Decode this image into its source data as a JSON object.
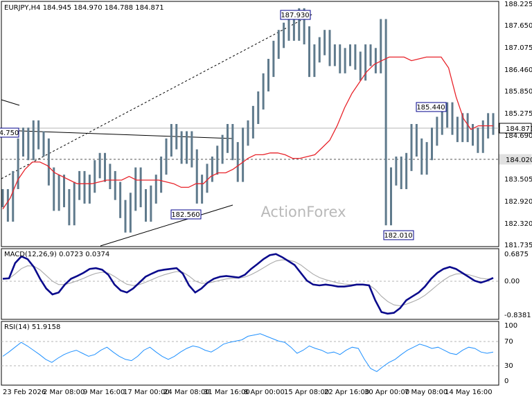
{
  "header": {
    "symbol_line": "EURJPY,H4  184.945 184.970 184.788 184.871",
    "macd_label": "MACD(12,26,9) 0.0723 0.0374",
    "rsi_label": "RSI(14) 51.9158",
    "watermark": "ActionForex"
  },
  "colors": {
    "bars": "#5f7a8c",
    "ma": "#e8232a",
    "macd": "#0a0a8c",
    "signal": "#aaaaaa",
    "rsi": "#1e90ff",
    "trend": "#000000",
    "label_border": "#00008b"
  },
  "chart_data": [
    {
      "type": "line",
      "title": "EURJPY,H4",
      "subtitle": "184.945 184.970 184.788 184.871",
      "ylim": [
        181.6,
        188.3
      ],
      "yticks": [
        "188.225",
        "187.650",
        "187.075",
        "186.460",
        "185.850",
        "185.275",
        "184.690",
        "184.105",
        "183.505",
        "182.920",
        "182.320",
        "181.735"
      ],
      "price_tags": [
        {
          "label": "184.871",
          "value": 184.871
        },
        {
          "label": "184.020",
          "value": 184.02
        }
      ],
      "hlines": [
        {
          "name": "current",
          "value": 184.871,
          "style": "solid"
        },
        {
          "name": "support",
          "value": 184.02,
          "style": "dashed"
        }
      ],
      "annotations": [
        {
          "text": "187.930",
          "x": "15 Apr 08:00",
          "y": 187.93
        },
        {
          "text": "185.440",
          "x": "7 May 08:00",
          "y": 185.44
        },
        {
          "text": "182.560",
          "x": "24 Mar 08:00",
          "y": 182.56
        },
        {
          "text": "182.010",
          "x": "1 May",
          "y": 182.01
        },
        {
          "text": "4.750",
          "x": "23 Feb 2026",
          "y": 184.75
        }
      ],
      "series": [
        {
          "values": [
            182.9,
            182.5,
            183.4,
            184.3,
            184.6,
            184.2,
            184.8,
            184.5,
            184.3,
            183.5,
            182.8,
            183.3,
            182.9,
            182.4,
            183.1,
            183.4,
            183.0,
            183.3,
            183.7,
            183.9,
            183.6,
            183.4,
            183.1,
            182.6,
            182.2,
            182.8,
            183.5,
            182.9,
            182.5,
            183.0,
            183.3,
            183.8,
            184.3,
            184.7,
            184.5,
            184.1,
            184.5,
            184.0,
            183.0,
            183.3,
            183.6,
            183.8,
            184.1,
            184.4,
            184.7,
            184.2,
            183.6,
            184.6,
            184.8,
            185.2,
            185.6,
            186.1,
            186.5,
            187.0,
            187.3,
            187.5,
            187.6,
            187.5,
            187.9,
            187.4,
            186.5,
            186.9,
            187.1,
            187.3,
            186.8,
            186.9,
            186.6,
            186.8,
            186.9,
            186.7,
            186.4,
            186.9,
            186.8,
            186.6,
            187.6,
            182.4,
            183.5,
            183.8,
            183.4,
            183.9,
            184.7,
            184.3,
            183.8,
            184.2,
            184.6,
            184.9,
            185.1,
            185.3,
            184.9,
            184.7,
            185.0,
            184.7,
            184.6,
            184.4,
            184.8,
            185.0,
            184.9
          ]
        },
        {
          "values": [
            182.6,
            182.9,
            183.4,
            183.7,
            183.9,
            183.9,
            183.8,
            183.6,
            183.5,
            183.4,
            183.3,
            183.3,
            183.3,
            183.35,
            183.4,
            183.4,
            183.4,
            183.5,
            183.4,
            183.4,
            183.4,
            183.4,
            183.35,
            183.3,
            183.2,
            183.2,
            183.3,
            183.3,
            183.5,
            183.6,
            183.6,
            183.7,
            183.85,
            184.0,
            184.1,
            184.1,
            184.15,
            184.15,
            184.1,
            184.0,
            184.0,
            184.05,
            184.1,
            184.3,
            184.5,
            184.9,
            185.4,
            185.8,
            186.1,
            186.4,
            186.6,
            186.7,
            186.8,
            186.8,
            186.8,
            186.7,
            186.75,
            186.8,
            186.8,
            186.8,
            186.5,
            185.7,
            185.1,
            184.8,
            184.9,
            184.9,
            184.9
          ]
        },
        {
          "name": "MACD(12,26,9)",
          "values": [
            0.05,
            0.06,
            0.45,
            0.62,
            0.55,
            0.35,
            0.05,
            -0.2,
            -0.35,
            -0.3,
            -0.1,
            0.05,
            0.12,
            0.2,
            0.3,
            0.32,
            0.28,
            0.15,
            -0.1,
            -0.25,
            -0.3,
            -0.2,
            -0.05,
            0.1,
            0.18,
            0.25,
            0.28,
            0.3,
            0.32,
            0.18,
            -0.12,
            -0.3,
            -0.2,
            -0.05,
            0.05,
            0.1,
            0.12,
            0.1,
            0.08,
            0.15,
            0.3,
            0.42,
            0.55,
            0.65,
            0.68,
            0.6,
            0.5,
            0.4,
            0.2,
            0.0,
            -0.1,
            -0.12,
            -0.1,
            -0.12,
            -0.15,
            -0.15,
            -0.13,
            -0.1,
            -0.1,
            -0.12,
            -0.5,
            -0.8,
            -0.84,
            -0.82,
            -0.7,
            -0.5,
            -0.4,
            -0.3,
            -0.15,
            0.05,
            0.2,
            0.3,
            0.35,
            0.3,
            0.2,
            0.1,
            0.0,
            -0.05,
            0.0,
            0.07
          ]
        },
        {
          "name": "RSI(14)",
          "values": [
            45,
            52,
            60,
            68,
            62,
            55,
            48,
            40,
            35,
            42,
            48,
            52,
            55,
            50,
            45,
            48,
            55,
            60,
            52,
            45,
            40,
            38,
            45,
            55,
            60,
            52,
            45,
            40,
            45,
            52,
            58,
            62,
            60,
            55,
            52,
            58,
            65,
            68,
            70,
            72,
            78,
            80,
            82,
            78,
            74,
            70,
            68,
            60,
            50,
            55,
            62,
            58,
            55,
            50,
            52,
            48,
            55,
            60,
            58,
            40,
            25,
            20,
            28,
            35,
            40,
            48,
            55,
            60,
            65,
            62,
            58,
            60,
            55,
            50,
            48,
            55,
            60,
            58,
            52,
            50,
            52
          ]
        }
      ]
    },
    {
      "type": "line",
      "title": "MACD(12,26,9)",
      "subtitle": "0.0723 0.0374",
      "ylim": [
        -0.95,
        0.78
      ],
      "yticks": [
        "0.6875",
        "0.00",
        "-0.8381"
      ]
    },
    {
      "type": "line",
      "title": "RSI(14)",
      "subtitle": "51.9158",
      "ylim": [
        0,
        100
      ],
      "yticks": [
        "100",
        "70",
        "30",
        "0"
      ]
    }
  ],
  "xaxis": {
    "labels": [
      "23 Feb 2026",
      "2 Mar 08:00",
      "9 Mar 16:00",
      "17 Mar 00:00",
      "24 Mar 08:00",
      "31 Mar 16:00",
      "8 Apr 00:00",
      "15 Apr 08:00",
      "22 Apr 16:00",
      "30 Apr 00:00",
      "7 May 08:00",
      "14 May 16:00"
    ]
  }
}
